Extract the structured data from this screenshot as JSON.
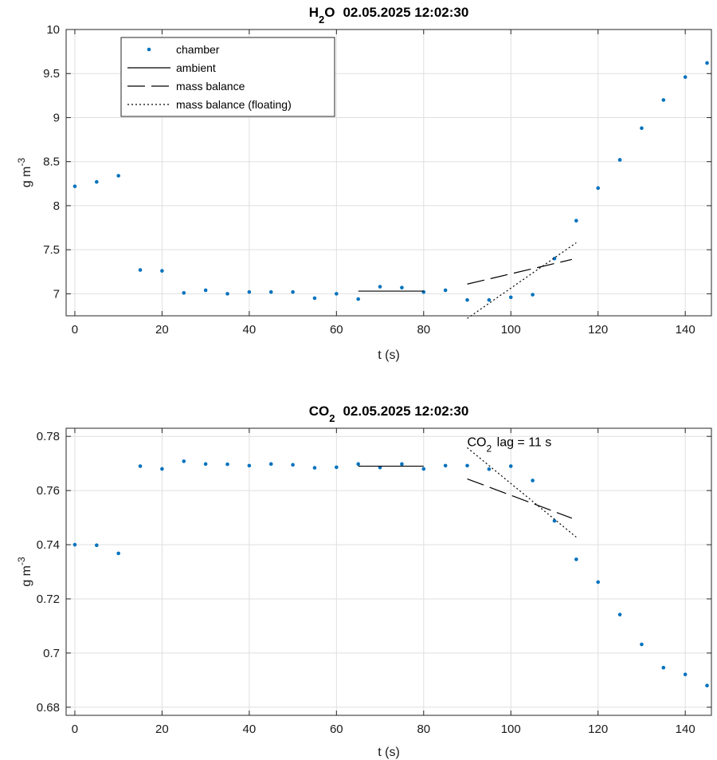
{
  "chart_data": [
    {
      "type": "scatter",
      "title": "02.05.2025 12:02:30",
      "title_species": {
        "base": "H",
        "sub": "2",
        "tail": "O"
      },
      "xlabel": "t (s)",
      "ylabel": {
        "base": "g m",
        "sup": "-3"
      },
      "xlim": [
        -2,
        146
      ],
      "ylim": [
        6.75,
        10
      ],
      "xticks": [
        0,
        20,
        40,
        60,
        80,
        100,
        120,
        140
      ],
      "yticks": [
        7,
        7.5,
        8,
        8.5,
        9,
        9.5,
        10
      ],
      "grid": true,
      "legend": {
        "placement": "top-left",
        "entries": [
          "chamber",
          "ambient",
          "mass balance",
          "mass balance (floating)"
        ]
      },
      "series": [
        {
          "name": "chamber",
          "style": "points",
          "color": "#0072BD",
          "x": [
            0,
            5,
            10,
            15,
            20,
            25,
            30,
            35,
            40,
            45,
            50,
            55,
            60,
            65,
            70,
            75,
            80,
            85,
            90,
            95,
            100,
            105,
            110,
            115,
            120,
            125,
            130,
            135,
            140,
            145
          ],
          "y": [
            8.22,
            8.27,
            8.34,
            7.27,
            7.26,
            7.01,
            7.04,
            7.0,
            7.02,
            7.02,
            7.02,
            6.95,
            7.0,
            6.94,
            7.08,
            7.07,
            7.02,
            7.04,
            6.93,
            6.93,
            6.96,
            6.99,
            7.4,
            7.83,
            8.2,
            8.52,
            8.88,
            9.2,
            9.46,
            9.62
          ]
        },
        {
          "name": "ambient",
          "style": "solid",
          "color": "#000000",
          "x": [
            65,
            80
          ],
          "y": [
            7.03,
            7.03
          ]
        },
        {
          "name": "mass balance",
          "style": "dashed",
          "color": "#000000",
          "x": [
            90,
            114
          ],
          "y": [
            7.11,
            7.39
          ]
        },
        {
          "name": "mass balance (floating)",
          "style": "dotted",
          "color": "#000000",
          "x": [
            90,
            115
          ],
          "y": [
            6.72,
            7.58
          ]
        }
      ]
    },
    {
      "type": "scatter",
      "title": "02.05.2025 12:02:30",
      "title_species": {
        "base": "CO",
        "sub": "2",
        "tail": ""
      },
      "xlabel": "t (s)",
      "ylabel": {
        "base": "g m",
        "sup": "-3"
      },
      "xlim": [
        -2,
        146
      ],
      "ylim": [
        0.677,
        0.783
      ],
      "xticks": [
        0,
        20,
        40,
        60,
        80,
        100,
        120,
        140
      ],
      "yticks": [
        0.68,
        0.7,
        0.72,
        0.74,
        0.76,
        0.78
      ],
      "grid": true,
      "annotation": {
        "base": "CO",
        "sub": "2",
        "tail": " lag = 11 s",
        "x": 90,
        "y": 0.7775
      },
      "series": [
        {
          "name": "chamber",
          "style": "points",
          "color": "#0072BD",
          "x": [
            0,
            5,
            10,
            15,
            20,
            25,
            30,
            35,
            40,
            45,
            50,
            55,
            60,
            65,
            70,
            75,
            80,
            85,
            90,
            95,
            100,
            105,
            110,
            115,
            120,
            125,
            130,
            135,
            140,
            145
          ],
          "y": [
            0.74,
            0.7398,
            0.7368,
            0.769,
            0.768,
            0.7708,
            0.7698,
            0.7697,
            0.7692,
            0.7698,
            0.7695,
            0.7684,
            0.7686,
            0.7698,
            0.7685,
            0.7698,
            0.768,
            0.7692,
            0.7692,
            0.7679,
            0.769,
            0.7637,
            0.7488,
            0.7346,
            0.7262,
            0.7142,
            0.7032,
            0.6946,
            0.6921,
            0.688
          ]
        },
        {
          "name": "ambient",
          "style": "solid",
          "color": "#000000",
          "x": [
            65,
            80
          ],
          "y": [
            0.769,
            0.769
          ]
        },
        {
          "name": "mass balance",
          "style": "dashed",
          "color": "#000000",
          "x": [
            90,
            114
          ],
          "y": [
            0.7643,
            0.7498
          ]
        },
        {
          "name": "mass balance (floating)",
          "style": "dotted",
          "color": "#000000",
          "x": [
            90,
            115
          ],
          "y": [
            0.7758,
            0.7428
          ]
        }
      ]
    }
  ]
}
